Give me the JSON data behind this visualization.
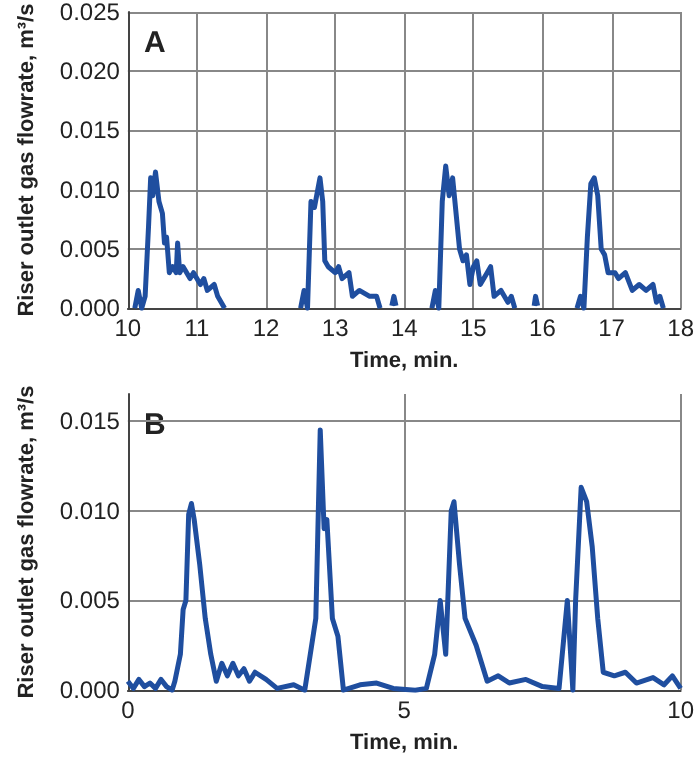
{
  "chart_data": [
    {
      "type": "line",
      "xlabel": "Time, min.",
      "ylabel": "Riser outlet gas flowrate, m³/s",
      "annotations": [
        "A"
      ],
      "xlim": [
        10,
        18
      ],
      "xticks": [
        10,
        11,
        12,
        13,
        14,
        15,
        16,
        17,
        18
      ],
      "ylim": [
        0,
        0.025
      ],
      "yticks": [
        {
          "value": 0,
          "label": "0.000"
        },
        0.005,
        {
          "value": 0.01,
          "label": "0.010"
        },
        0.015,
        {
          "value": 0.02,
          "label": "0.020"
        },
        0.025
      ],
      "grid": true,
      "marker": "none",
      "line_style": "solid",
      "series": [
        {
          "color": "#1f4e9f",
          "x": [
            10.1,
            10.15,
            10.2,
            10.25,
            10.3,
            10.33,
            10.36,
            10.4,
            10.45,
            10.5,
            10.53,
            10.56,
            10.6,
            10.65,
            10.7,
            10.72,
            10.75,
            10.8,
            10.9,
            10.95,
            11.05,
            11.1,
            11.15,
            11.25,
            11.3,
            11.4,
            11.45,
            12.5,
            12.55,
            12.6,
            12.65,
            12.7,
            12.78,
            12.82,
            12.85,
            12.9,
            13.0,
            13.05,
            13.1,
            13.2,
            13.25,
            13.35,
            13.5,
            13.6,
            13.65,
            13.7,
            13.82,
            13.85,
            13.88,
            13.9,
            14.4,
            14.45,
            14.5,
            14.55,
            14.6,
            14.65,
            14.7,
            14.75,
            14.8,
            14.85,
            14.9,
            14.95,
            15.0,
            15.05,
            15.1,
            15.2,
            15.25,
            15.3,
            15.4,
            15.5,
            15.55,
            15.6,
            15.65,
            15.88,
            15.9,
            15.93,
            15.95,
            16.5,
            16.55,
            16.6,
            16.65,
            16.7,
            16.75,
            16.8,
            16.85,
            16.9,
            16.95,
            17.05,
            17.1,
            17.2,
            17.3,
            17.4,
            17.5,
            17.6,
            17.65,
            17.7,
            17.75
          ],
          "values": [
            0,
            0.0015,
            0,
            0.001,
            0.007,
            0.011,
            0.0095,
            0.0115,
            0.009,
            0.008,
            0.0055,
            0.006,
            0.003,
            0.0035,
            0.003,
            0.0055,
            0.003,
            0.0035,
            0.0025,
            0.003,
            0.002,
            0.0025,
            0.0015,
            0.002,
            0.001,
            0,
            null,
            0,
            0.0015,
            0,
            0.009,
            0.0085,
            0.011,
            0.009,
            0.004,
            0.0035,
            0.003,
            0.0035,
            0.0025,
            0.003,
            0.001,
            0.0015,
            0.001,
            0.001,
            0,
            null,
            0.0002,
            0.001,
            0.0002,
            null,
            0,
            0.0015,
            0,
            0.009,
            0.012,
            0.0095,
            0.011,
            0.008,
            0.005,
            0.004,
            0.0045,
            0.002,
            0.0035,
            0.004,
            0.002,
            0.003,
            0.0035,
            0.001,
            0.0015,
            0.0005,
            0.001,
            0,
            null,
            0.0002,
            0.001,
            0.0002,
            null,
            0,
            0.001,
            0,
            0.006,
            0.0105,
            0.011,
            0.0095,
            0.005,
            0.0045,
            0.003,
            0.003,
            0.0025,
            0.003,
            0.0015,
            0.002,
            0.0015,
            0.002,
            0.0005,
            0.001,
            0
          ]
        }
      ]
    },
    {
      "type": "line",
      "xlabel": "Time, min.",
      "ylabel": "Riser outlet gas flowrate, m³/s",
      "annotations": [
        "B"
      ],
      "xlim": [
        0,
        10
      ],
      "xticks": [
        0,
        5,
        10
      ],
      "ylim": [
        0,
        0.0165
      ],
      "yticks": [
        {
          "value": 0,
          "label": "0.000"
        },
        0.005,
        {
          "value": 0.01,
          "label": "0.010"
        },
        0.015
      ],
      "grid": true,
      "marker": "none",
      "line_style": "solid",
      "series": [
        {
          "color": "#1f4e9f",
          "x": [
            0,
            0.1,
            0.2,
            0.3,
            0.4,
            0.5,
            0.6,
            0.7,
            0.8,
            0.85,
            0.95,
            1.0,
            1.05,
            1.1,
            1.15,
            1.2,
            1.3,
            1.4,
            1.5,
            1.6,
            1.7,
            1.8,
            1.9,
            2.0,
            2.1,
            2.2,
            2.3,
            2.5,
            2.7,
            3.0,
            3.2,
            3.25,
            3.35,
            3.4,
            3.48,
            3.55,
            3.6,
            3.7,
            3.8,
            3.9,
            4.2,
            4.5,
            4.8,
            5.2,
            5.4,
            5.55,
            5.65,
            5.75,
            5.85,
            5.9,
            6.0,
            6.1,
            6.3,
            6.4,
            6.5,
            6.7,
            6.9,
            7.2,
            7.5,
            7.8,
            7.95,
            8.05,
            8.1,
            8.2,
            8.3,
            8.4,
            8.5,
            8.6,
            8.8,
            9.0,
            9.2,
            9.5,
            9.7,
            9.85,
            10.0
          ],
          "values": [
            0.0005,
            0.0001,
            0.0006,
            0.0002,
            0.0004,
            0.0001,
            0.0006,
            0.0002,
            0,
            0.0005,
            0.002,
            0.0045,
            0.005,
            0.0098,
            0.0104,
            0.0095,
            0.007,
            0.004,
            0.002,
            0.0005,
            0.0015,
            0.0008,
            0.0015,
            0.0008,
            0.0012,
            0.0005,
            0.001,
            0.0006,
            0.0001,
            0.0003,
            0,
            0.001,
            0.003,
            0.004,
            0.0145,
            0.009,
            0.0095,
            0.004,
            0.003,
            0,
            0.0003,
            0.0004,
            0.0001,
            0,
            0.0001,
            0.002,
            0.005,
            0.002,
            0.01,
            0.0105,
            0.007,
            0.004,
            0.0025,
            0.0015,
            0.0005,
            0.0008,
            0.0004,
            0.0006,
            0.0002,
            0.0001,
            0.005,
            0,
            0.005,
            0.0113,
            0.0105,
            0.008,
            0.004,
            0.001,
            0.0008,
            0.001,
            0.0004,
            0.0007,
            0.0003,
            0.0008,
            0.0001
          ]
        }
      ]
    }
  ]
}
